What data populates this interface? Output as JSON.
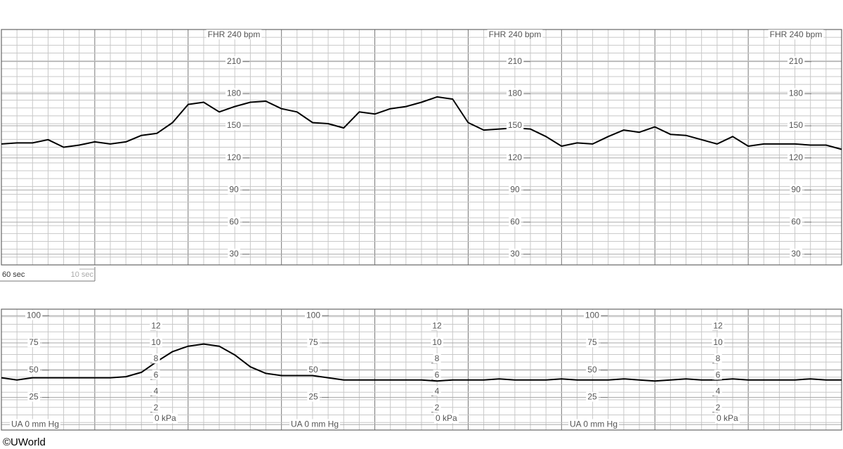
{
  "chart_data": [
    {
      "type": "line",
      "axis_title": "FHR 240 bpm",
      "x": [
        0,
        10,
        20,
        30,
        40,
        50,
        60,
        70,
        80,
        90,
        100,
        110,
        120,
        130,
        140,
        150,
        160,
        170,
        180,
        190,
        200,
        210,
        220,
        230,
        240,
        250,
        260,
        270,
        280,
        290,
        300,
        310,
        320,
        330,
        340,
        350,
        360,
        370,
        380,
        390,
        400,
        410,
        420,
        430,
        440,
        450,
        460,
        470,
        480,
        490,
        500,
        510,
        520,
        530,
        540
      ],
      "series": [
        {
          "color": "#000000",
          "values": [
            133,
            134,
            134,
            137,
            130,
            132,
            135,
            133,
            135,
            141,
            143,
            153,
            170,
            172,
            163,
            168,
            172,
            173,
            166,
            163,
            153,
            152,
            148,
            163,
            161,
            166,
            168,
            172,
            177,
            175,
            153,
            146,
            147,
            148,
            147,
            140,
            131,
            134,
            133,
            140,
            146,
            144,
            149,
            142,
            141,
            137,
            133,
            140,
            131,
            133,
            133,
            133,
            132,
            132,
            128
          ]
        }
      ],
      "xlim": [
        0,
        540
      ],
      "ylim": [
        20,
        240
      ],
      "yticks": [
        30,
        60,
        90,
        120,
        150,
        180,
        210
      ],
      "grid": true,
      "scale_labels": [
        "60 sec",
        "10 sec"
      ]
    },
    {
      "type": "line",
      "x": [
        0,
        10,
        20,
        30,
        40,
        50,
        60,
        70,
        80,
        90,
        100,
        110,
        120,
        130,
        140,
        150,
        160,
        170,
        180,
        190,
        200,
        210,
        220,
        230,
        240,
        250,
        260,
        270,
        280,
        290,
        300,
        310,
        320,
        330,
        340,
        350,
        360,
        370,
        380,
        390,
        400,
        410,
        420,
        430,
        440,
        450,
        460,
        470,
        480,
        490,
        500,
        510,
        520,
        530,
        540
      ],
      "series": [
        {
          "color": "#000000",
          "values": [
            43,
            41,
            43,
            43,
            43,
            43,
            43,
            43,
            44,
            48,
            58,
            67,
            72,
            74,
            72,
            64,
            53,
            47,
            45,
            45,
            45,
            43,
            41,
            41,
            41,
            41,
            41,
            41,
            40,
            41,
            41,
            41,
            42,
            41,
            41,
            41,
            42,
            41,
            41,
            41,
            42,
            41,
            40,
            41,
            42,
            41,
            41,
            42,
            41,
            41,
            41,
            41,
            42,
            41,
            41
          ]
        }
      ],
      "xlim": [
        0,
        540
      ],
      "ylim": [
        -5,
        106
      ],
      "yticks": [
        {
          "value": 0,
          "label": "UA  0 mm Hg"
        },
        25,
        50,
        75,
        100
      ],
      "y2lim": [
        -0.7,
        14.1
      ],
      "y2ticks": [
        {
          "value": 0,
          "label": "0 kPa"
        },
        2,
        4,
        6,
        8,
        10,
        12
      ],
      "grid": true
    },
    {
      "type": "footer",
      "text": "©UWorld"
    }
  ]
}
